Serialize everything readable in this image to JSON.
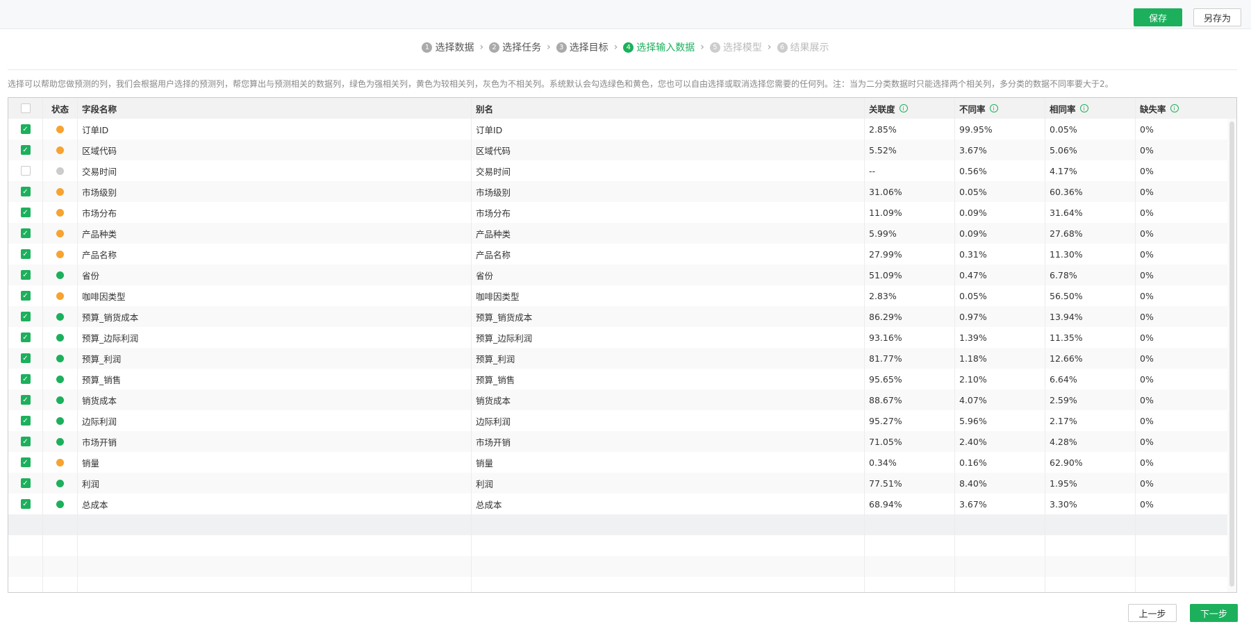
{
  "toolbar": {
    "save": "保存",
    "save_as": "另存为"
  },
  "steps": [
    {
      "n": "1",
      "label": "选择数据",
      "state": "done"
    },
    {
      "n": "2",
      "label": "选择任务",
      "state": "done"
    },
    {
      "n": "3",
      "label": "选择目标",
      "state": "done"
    },
    {
      "n": "4",
      "label": "选择输入数据",
      "state": "active"
    },
    {
      "n": "5",
      "label": "选择模型",
      "state": "future"
    },
    {
      "n": "6",
      "label": "结果展示",
      "state": "future"
    }
  ],
  "description": "选择可以帮助您做预测的列，我们会根据用户选择的预测列，帮您算出与预测相关的数据列，绿色为强相关列，黄色为较相关列，灰色为不相关列。系统默认会勾选绿色和黄色，您也可以自由选择或取消选择您需要的任何列。注：当为二分类数据时只能选择两个相关列，多分类的数据不同率要大于2。",
  "colors": {
    "green": "#1cb05c",
    "orange": "#f7a330",
    "gray": "#cccccc"
  },
  "table": {
    "headers": {
      "status": "状态",
      "field": "字段名称",
      "alias": "别名",
      "relevance": "关联度",
      "diff": "不同率",
      "same": "相同率",
      "missing": "缺失率"
    },
    "rows": [
      {
        "checked": true,
        "status": "orange",
        "field": "订单ID",
        "alias": "订单ID",
        "relevance": "2.85%",
        "diff": "99.95%",
        "same": "0.05%",
        "missing": "0%"
      },
      {
        "checked": true,
        "status": "orange",
        "field": "区域代码",
        "alias": "区域代码",
        "relevance": "5.52%",
        "diff": "3.67%",
        "same": "5.06%",
        "missing": "0%"
      },
      {
        "checked": false,
        "status": "gray",
        "field": "交易时间",
        "alias": "交易时间",
        "relevance": "--",
        "diff": "0.56%",
        "same": "4.17%",
        "missing": "0%"
      },
      {
        "checked": true,
        "status": "orange",
        "field": "市场级别",
        "alias": "市场级别",
        "relevance": "31.06%",
        "diff": "0.05%",
        "same": "60.36%",
        "missing": "0%"
      },
      {
        "checked": true,
        "status": "orange",
        "field": "市场分布",
        "alias": "市场分布",
        "relevance": "11.09%",
        "diff": "0.09%",
        "same": "31.64%",
        "missing": "0%"
      },
      {
        "checked": true,
        "status": "orange",
        "field": "产品种类",
        "alias": "产品种类",
        "relevance": "5.99%",
        "diff": "0.09%",
        "same": "27.68%",
        "missing": "0%"
      },
      {
        "checked": true,
        "status": "orange",
        "field": "产品名称",
        "alias": "产品名称",
        "relevance": "27.99%",
        "diff": "0.31%",
        "same": "11.30%",
        "missing": "0%"
      },
      {
        "checked": true,
        "status": "green",
        "field": "省份",
        "alias": "省份",
        "relevance": "51.09%",
        "diff": "0.47%",
        "same": "6.78%",
        "missing": "0%"
      },
      {
        "checked": true,
        "status": "orange",
        "field": "咖啡因类型",
        "alias": "咖啡因类型",
        "relevance": "2.83%",
        "diff": "0.05%",
        "same": "56.50%",
        "missing": "0%"
      },
      {
        "checked": true,
        "status": "green",
        "field": "预算_销货成本",
        "alias": "预算_销货成本",
        "relevance": "86.29%",
        "diff": "0.97%",
        "same": "13.94%",
        "missing": "0%"
      },
      {
        "checked": true,
        "status": "green",
        "field": "预算_边际利润",
        "alias": "预算_边际利润",
        "relevance": "93.16%",
        "diff": "1.39%",
        "same": "11.35%",
        "missing": "0%"
      },
      {
        "checked": true,
        "status": "green",
        "field": "预算_利润",
        "alias": "预算_利润",
        "relevance": "81.77%",
        "diff": "1.18%",
        "same": "12.66%",
        "missing": "0%"
      },
      {
        "checked": true,
        "status": "green",
        "field": "预算_销售",
        "alias": "预算_销售",
        "relevance": "95.65%",
        "diff": "2.10%",
        "same": "6.64%",
        "missing": "0%"
      },
      {
        "checked": true,
        "status": "green",
        "field": "销货成本",
        "alias": "销货成本",
        "relevance": "88.67%",
        "diff": "4.07%",
        "same": "2.59%",
        "missing": "0%"
      },
      {
        "checked": true,
        "status": "green",
        "field": "边际利润",
        "alias": "边际利润",
        "relevance": "95.27%",
        "diff": "5.96%",
        "same": "2.17%",
        "missing": "0%"
      },
      {
        "checked": true,
        "status": "green",
        "field": "市场开销",
        "alias": "市场开销",
        "relevance": "71.05%",
        "diff": "2.40%",
        "same": "4.28%",
        "missing": "0%"
      },
      {
        "checked": true,
        "status": "orange",
        "field": "销量",
        "alias": "销量",
        "relevance": "0.34%",
        "diff": "0.16%",
        "same": "62.90%",
        "missing": "0%"
      },
      {
        "checked": true,
        "status": "green",
        "field": "利润",
        "alias": "利润",
        "relevance": "77.51%",
        "diff": "8.40%",
        "same": "1.95%",
        "missing": "0%"
      },
      {
        "checked": true,
        "status": "green",
        "field": "总成本",
        "alias": "总成本",
        "relevance": "68.94%",
        "diff": "3.67%",
        "same": "3.30%",
        "missing": "0%"
      }
    ]
  },
  "footer": {
    "prev": "上一步",
    "next": "下一步"
  }
}
